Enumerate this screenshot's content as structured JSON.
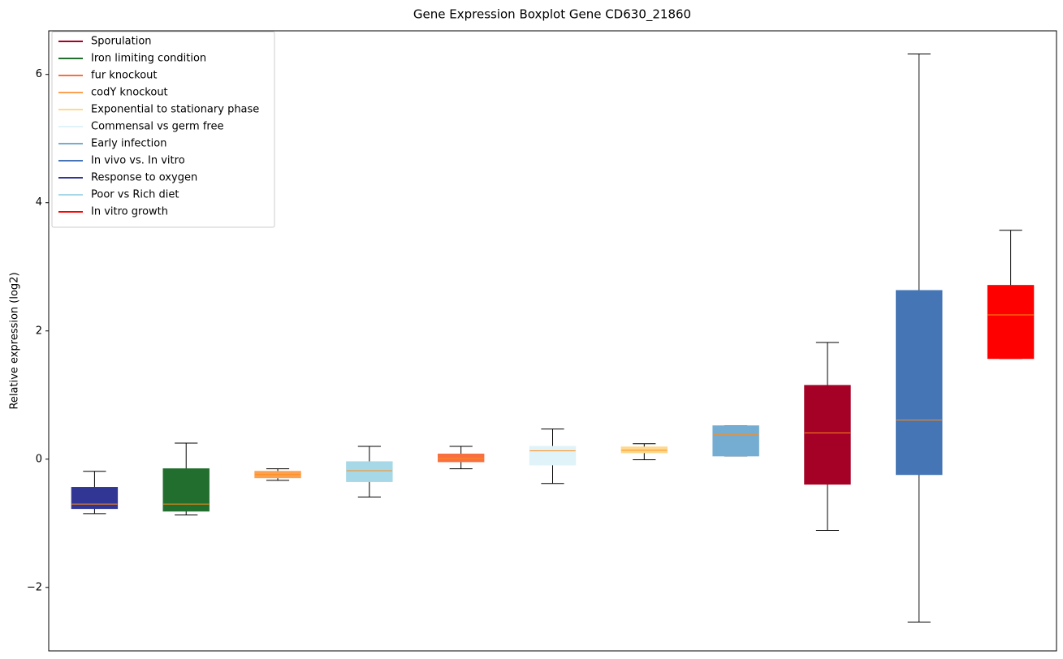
{
  "chart_data": {
    "type": "boxplot",
    "title": "Gene Expression Boxplot Gene CD630_21860",
    "y_label": "Relative expression (log2)",
    "xlim": [
      0.5,
      11.5
    ],
    "ylim": [
      -2.99,
      6.68
    ],
    "yticks": [
      {
        "value": -2,
        "label": "−2"
      },
      0,
      2,
      4,
      6
    ],
    "median_color": "#ff8c1a",
    "legend": "upper left",
    "series": [
      {
        "name": "Sporulation",
        "color": "#a50026",
        "x": 9,
        "whislo": -1.11,
        "q1": -0.39,
        "med": 0.41,
        "q3": 1.15,
        "whishi": 1.82
      },
      {
        "name": "Iron limiting condition",
        "color": "#226e2e",
        "x": 2,
        "whislo": -0.87,
        "q1": -0.81,
        "med": -0.7,
        "q3": -0.15,
        "whishi": 0.25
      },
      {
        "name": "fur knockout",
        "color": "#f87040",
        "x": 5,
        "whislo": -0.15,
        "q1": -0.04,
        "med": 0.01,
        "q3": 0.08,
        "whishi": 0.2
      },
      {
        "name": "codY knockout",
        "color": "#fda050",
        "x": 3,
        "whislo": -0.33,
        "q1": -0.29,
        "med": -0.24,
        "q3": -0.19,
        "whishi": -0.15
      },
      {
        "name": "Exponential to stationary phase",
        "color": "#fed98e",
        "x": 7,
        "whislo": -0.01,
        "q1": 0.1,
        "med": 0.14,
        "q3": 0.19,
        "whishi": 0.24
      },
      {
        "name": "Commensal vs germ free",
        "color": "#e0f3f8",
        "x": 6,
        "whislo": -0.38,
        "q1": -0.09,
        "med": 0.13,
        "q3": 0.2,
        "whishi": 0.47
      },
      {
        "name": "Early infection",
        "color": "#74add1",
        "x": 8,
        "whislo": 0.05,
        "q1": 0.05,
        "med": 0.38,
        "q3": 0.52,
        "whishi": 0.52
      },
      {
        "name": "In vivo vs. In vitro",
        "color": "#4575b4",
        "x": 10,
        "whislo": -2.54,
        "q1": -0.24,
        "med": 0.61,
        "q3": 2.63,
        "whishi": 6.32
      },
      {
        "name": "Response to oxygen",
        "color": "#313695",
        "x": 1,
        "whislo": -0.85,
        "q1": -0.77,
        "med": -0.7,
        "q3": -0.44,
        "whishi": -0.19
      },
      {
        "name": "Poor vs Rich diet",
        "color": "#a6d8e8",
        "x": 4,
        "whislo": -0.59,
        "q1": -0.35,
        "med": -0.18,
        "q3": -0.04,
        "whishi": 0.2
      },
      {
        "name": "In vitro growth",
        "color": "#ff0000",
        "x": 11,
        "whislo": 1.57,
        "q1": 1.57,
        "med": 2.25,
        "q3": 2.71,
        "whishi": 3.57
      }
    ]
  }
}
